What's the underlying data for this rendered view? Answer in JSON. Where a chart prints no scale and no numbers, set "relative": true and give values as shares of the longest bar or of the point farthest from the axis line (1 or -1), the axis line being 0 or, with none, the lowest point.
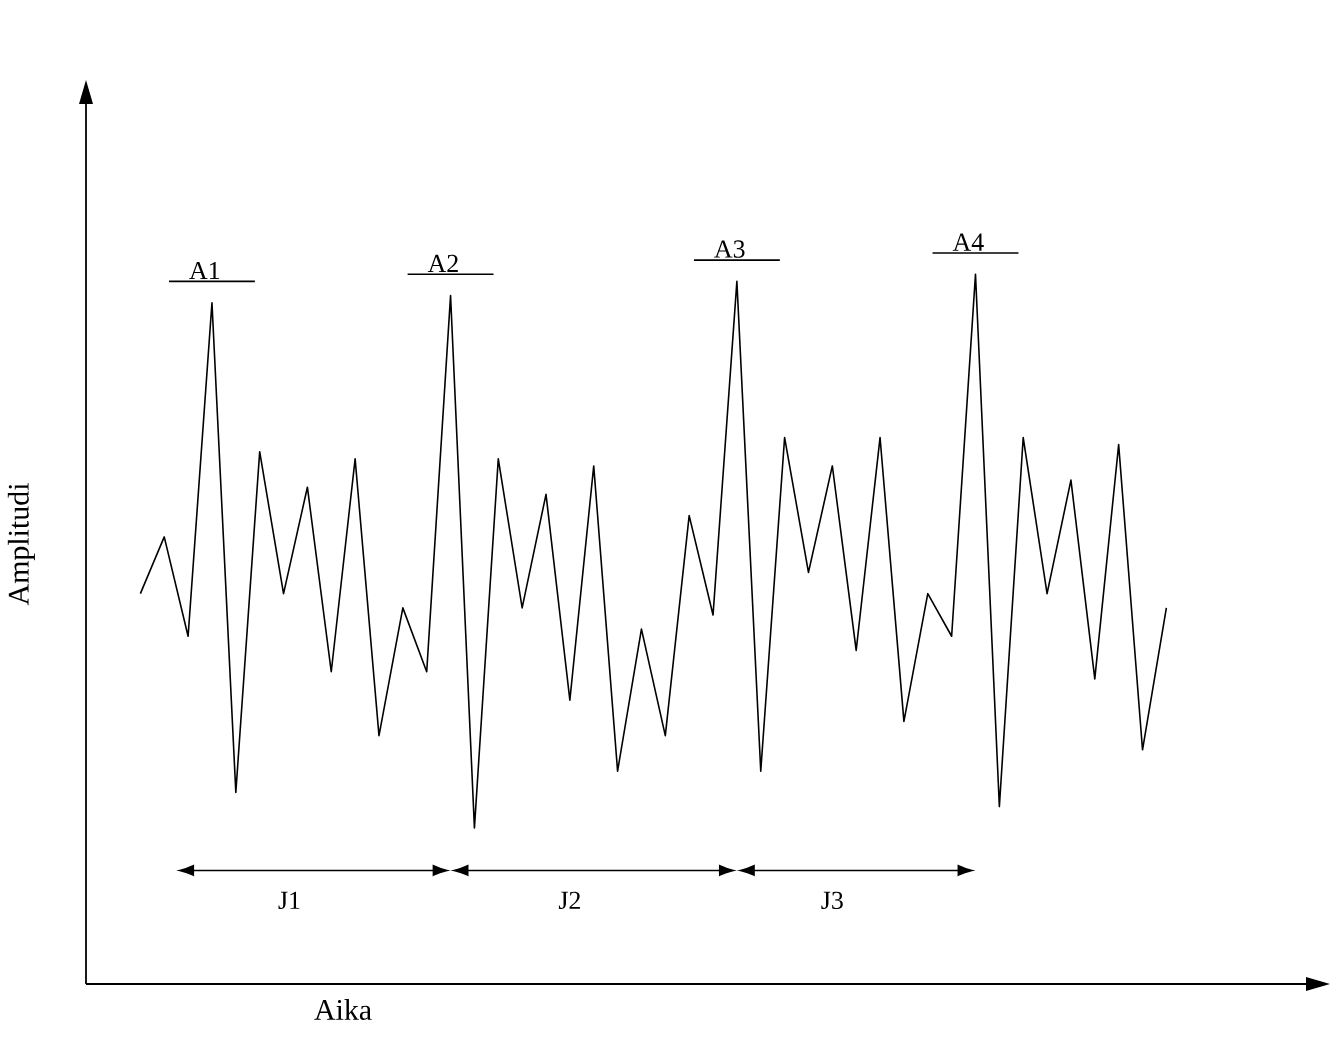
{
  "chart_data": {
    "type": "line",
    "relative": true,
    "xlabel": "Aika",
    "ylabel": "Amplitudi",
    "categories": [
      null,
      null,
      null,
      null,
      null,
      null,
      null,
      null,
      null,
      null,
      null,
      null,
      null,
      null,
      null,
      null,
      null,
      null,
      null,
      null,
      null,
      null,
      null,
      null,
      null,
      null,
      null,
      null,
      null,
      null,
      null,
      null,
      null,
      null,
      null,
      null,
      null,
      null,
      null,
      null,
      null,
      null,
      null,
      null
    ],
    "series": [
      {
        "color": "#000000",
        "values": [
          0.55,
          0.63,
          0.49,
          0.96,
          0.27,
          0.75,
          0.55,
          0.7,
          0.44,
          0.74,
          0.35,
          0.53,
          0.44,
          0.97,
          0.22,
          0.74,
          0.53,
          0.69,
          0.4,
          0.73,
          0.3,
          0.5,
          0.35,
          0.66,
          0.52,
          0.99,
          0.3,
          0.77,
          0.58,
          0.73,
          0.47,
          0.77,
          0.37,
          0.55,
          0.49,
          1,
          0.25,
          0.77,
          0.55,
          0.71,
          0.43,
          0.76,
          0.33,
          0.53
        ]
      }
    ],
    "annotations": [
      "A1",
      "A2",
      "A3",
      "A4",
      "J1",
      "J2",
      "J3"
    ],
    "marker": "none",
    "line_style": "solid"
  }
}
